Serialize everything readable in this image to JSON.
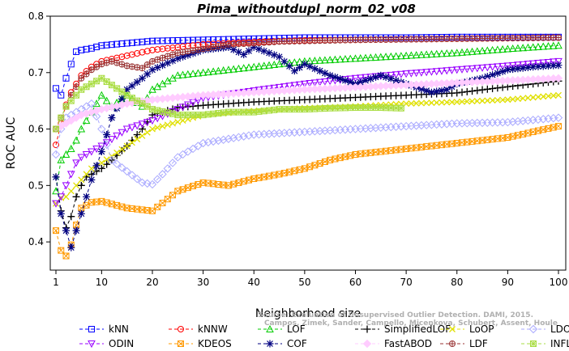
{
  "chart_data": {
    "type": "line",
    "title": "Pima_withoutdupl_norm_02_v08",
    "xlabel": "Neighborhood size",
    "ylabel": "ROC AUC",
    "xlim": [
      1,
      100
    ],
    "ylim": [
      0.35,
      0.8
    ],
    "xticks": [
      1,
      10,
      20,
      30,
      40,
      50,
      60,
      70,
      80,
      90,
      100
    ],
    "yticks": [
      0.4,
      0.5,
      0.6,
      0.7,
      0.8
    ],
    "grid": false,
    "legend_position": "bottom",
    "watermark_lines": [
      "Source: Evaluation of Unsupervised Outlier Detection. DAMI, 2015.",
      "Campos, Zimek, Sander, Campello, Micenkova, Schubert, Assent, Houle"
    ],
    "series": [
      {
        "name": "kNN",
        "color": "#0000ff",
        "marker": "square",
        "x": [
          1,
          2,
          3,
          4,
          5,
          6,
          8,
          10,
          15,
          20,
          25,
          30,
          40,
          50,
          60,
          70,
          80,
          90,
          100
        ],
        "y": [
          0.672,
          0.66,
          0.69,
          0.715,
          0.737,
          0.74,
          0.743,
          0.748,
          0.752,
          0.756,
          0.757,
          0.758,
          0.76,
          0.762,
          0.762,
          0.762,
          0.763,
          0.763,
          0.763
        ]
      },
      {
        "name": "kNNW",
        "color": "#ff0000",
        "marker": "circle",
        "x": [
          1,
          2,
          3,
          4,
          5,
          6,
          8,
          10,
          15,
          20,
          25,
          30,
          40,
          50,
          60,
          70,
          80,
          90,
          100
        ],
        "y": [
          0.572,
          0.61,
          0.643,
          0.665,
          0.68,
          0.695,
          0.71,
          0.72,
          0.73,
          0.74,
          0.745,
          0.75,
          0.754,
          0.757,
          0.758,
          0.759,
          0.76,
          0.761,
          0.762
        ]
      },
      {
        "name": "LOF",
        "color": "#00cc00",
        "marker": "triangle-up",
        "x": [
          1,
          2,
          3,
          4,
          5,
          6,
          8,
          10,
          12,
          15,
          18,
          20,
          25,
          30,
          40,
          50,
          60,
          70,
          80,
          90,
          100
        ],
        "y": [
          0.49,
          0.545,
          0.555,
          0.565,
          0.58,
          0.6,
          0.63,
          0.66,
          0.64,
          0.66,
          0.64,
          0.67,
          0.695,
          0.7,
          0.71,
          0.72,
          0.725,
          0.73,
          0.735,
          0.742,
          0.748
        ]
      },
      {
        "name": "SimplifiedLOF",
        "color": "#000000",
        "marker": "plus",
        "x": [
          1,
          2,
          3,
          4,
          5,
          6,
          7,
          8,
          10,
          12,
          15,
          18,
          20,
          25,
          30,
          40,
          50,
          60,
          70,
          80,
          90,
          100
        ],
        "y": [
          0.515,
          0.455,
          0.425,
          0.445,
          0.48,
          0.5,
          0.515,
          0.52,
          0.53,
          0.545,
          0.57,
          0.6,
          0.625,
          0.638,
          0.642,
          0.648,
          0.652,
          0.656,
          0.66,
          0.664,
          0.675,
          0.685
        ]
      },
      {
        "name": "LoOP",
        "color": "#e0e000",
        "marker": "x",
        "x": [
          1,
          2,
          3,
          4,
          5,
          6,
          8,
          10,
          15,
          20,
          30,
          40,
          50,
          60,
          70,
          80,
          90,
          100
        ],
        "y": [
          0.468,
          0.478,
          0.48,
          0.49,
          0.5,
          0.51,
          0.53,
          0.54,
          0.57,
          0.6,
          0.625,
          0.632,
          0.637,
          0.64,
          0.645,
          0.648,
          0.652,
          0.66
        ]
      },
      {
        "name": "LDOF",
        "color": "#aaaaff",
        "marker": "diamond",
        "x": [
          1,
          2,
          3,
          4,
          5,
          6,
          8,
          10,
          12,
          15,
          18,
          20,
          22,
          25,
          30,
          40,
          50,
          60,
          70,
          80,
          90,
          100
        ],
        "y": [
          0.555,
          0.6,
          0.62,
          0.625,
          0.63,
          0.635,
          0.645,
          0.6,
          0.545,
          0.525,
          0.505,
          0.502,
          0.52,
          0.55,
          0.575,
          0.59,
          0.595,
          0.6,
          0.605,
          0.61,
          0.612,
          0.62
        ]
      },
      {
        "name": "ODIN",
        "color": "#9900ff",
        "marker": "triangle-down",
        "x": [
          1,
          2,
          3,
          4,
          5,
          6,
          8,
          10,
          15,
          20,
          25,
          30,
          40,
          50,
          60,
          70,
          80,
          90,
          100
        ],
        "y": [
          0.468,
          0.48,
          0.5,
          0.52,
          0.54,
          0.55,
          0.56,
          0.57,
          0.6,
          0.615,
          0.635,
          0.655,
          0.668,
          0.68,
          0.69,
          0.698,
          0.705,
          0.712,
          0.72
        ]
      },
      {
        "name": "KDEOS",
        "color": "#ff9900",
        "marker": "square-x",
        "x": [
          1,
          2,
          3,
          4,
          5,
          6,
          8,
          10,
          15,
          20,
          25,
          30,
          35,
          40,
          45,
          50,
          55,
          60,
          70,
          80,
          90,
          100
        ],
        "y": [
          0.42,
          0.385,
          0.375,
          0.395,
          0.43,
          0.46,
          0.47,
          0.472,
          0.46,
          0.455,
          0.49,
          0.505,
          0.5,
          0.512,
          0.52,
          0.53,
          0.545,
          0.555,
          0.565,
          0.575,
          0.585,
          0.605
        ]
      },
      {
        "name": "COF",
        "color": "#000080",
        "marker": "star",
        "x": [
          1,
          2,
          3,
          4,
          5,
          6,
          8,
          10,
          12,
          15,
          18,
          20,
          25,
          30,
          35,
          38,
          40,
          45,
          48,
          50,
          55,
          60,
          65,
          70,
          75,
          78,
          80,
          85,
          90,
          95,
          100
        ],
        "y": [
          0.515,
          0.45,
          0.42,
          0.39,
          0.42,
          0.45,
          0.51,
          0.56,
          0.62,
          0.67,
          0.69,
          0.705,
          0.725,
          0.74,
          0.745,
          0.732,
          0.745,
          0.728,
          0.703,
          0.715,
          0.695,
          0.68,
          0.695,
          0.68,
          0.665,
          0.67,
          0.68,
          0.69,
          0.705,
          0.71,
          0.713
        ]
      },
      {
        "name": "FastABOD",
        "color": "#ffccff",
        "marker": "diamond-filled",
        "x": [
          1,
          2,
          3,
          4,
          5,
          6,
          8,
          10,
          15,
          20,
          30,
          40,
          50,
          60,
          70,
          80,
          90,
          100
        ],
        "y": [
          0.6,
          0.605,
          0.61,
          0.615,
          0.62,
          0.625,
          0.63,
          0.635,
          0.645,
          0.652,
          0.66,
          0.665,
          0.67,
          0.674,
          0.678,
          0.682,
          0.686,
          0.69
        ]
      },
      {
        "name": "LDF",
        "color": "#993333",
        "marker": "circle-plus",
        "x": [
          1,
          2,
          3,
          4,
          5,
          6,
          8,
          10,
          12,
          15,
          18,
          20,
          25,
          30,
          35,
          40,
          45,
          50,
          60,
          70,
          80,
          90,
          100
        ],
        "y": [
          0.6,
          0.62,
          0.64,
          0.66,
          0.675,
          0.69,
          0.705,
          0.715,
          0.72,
          0.712,
          0.708,
          0.72,
          0.735,
          0.742,
          0.75,
          0.752,
          0.755,
          0.756,
          0.758,
          0.759,
          0.76,
          0.761,
          0.762
        ]
      },
      {
        "name": "INFLO",
        "color": "#aadd44",
        "marker": "square-star",
        "x": [
          1,
          2,
          3,
          4,
          5,
          6,
          8,
          10,
          15,
          20,
          25,
          30,
          35,
          40,
          45,
          50,
          55,
          60,
          65,
          69
        ],
        "y": [
          0.6,
          0.62,
          0.64,
          0.65,
          0.66,
          0.67,
          0.68,
          0.69,
          0.66,
          0.635,
          0.625,
          0.625,
          0.63,
          0.63,
          0.635,
          0.635,
          0.637,
          0.638,
          0.638,
          0.637
        ]
      }
    ]
  }
}
